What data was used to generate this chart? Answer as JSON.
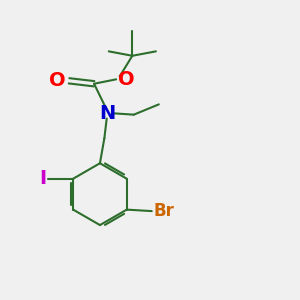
{
  "background_color": "#f0f0f0",
  "bond_color": "#2d6e2d",
  "O_color": "#ff0000",
  "N_color": "#0000cc",
  "Br_color": "#cc6600",
  "I_color": "#cc00cc",
  "line_width": 1.5,
  "font_size": 12,
  "fig_size": [
    3.0,
    3.0
  ],
  "dpi": 100,
  "xlim": [
    0,
    10
  ],
  "ylim": [
    0,
    10
  ]
}
